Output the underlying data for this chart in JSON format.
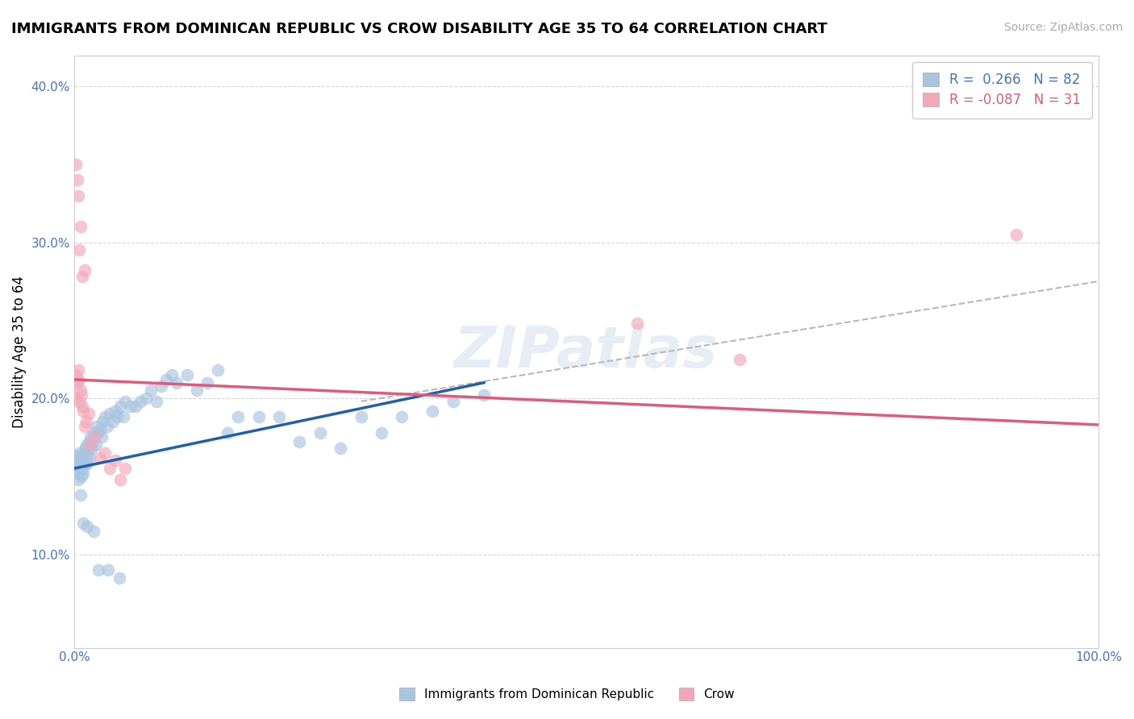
{
  "title": "IMMIGRANTS FROM DOMINICAN REPUBLIC VS CROW DISABILITY AGE 35 TO 64 CORRELATION CHART",
  "source_text": "Source: ZipAtlas.com",
  "ylabel": "Disability Age 35 to 64",
  "xlim": [
    0.0,
    1.0
  ],
  "ylim": [
    0.04,
    0.42
  ],
  "xticks": [
    0.0,
    0.1,
    0.2,
    0.3,
    0.4,
    0.5,
    0.6,
    0.7,
    0.8,
    0.9,
    1.0
  ],
  "xticklabels": [
    "0.0%",
    "",
    "",
    "",
    "",
    "",
    "",
    "",
    "",
    "",
    "100.0%"
  ],
  "yticks": [
    0.1,
    0.2,
    0.3,
    0.4
  ],
  "yticklabels": [
    "10.0%",
    "20.0%",
    "30.0%",
    "40.0%"
  ],
  "blue_R": 0.266,
  "blue_N": 82,
  "pink_R": -0.087,
  "pink_N": 31,
  "legend_label_blue": "Immigrants from Dominican Republic",
  "legend_label_pink": "Crow",
  "blue_color": "#a8c4e0",
  "pink_color": "#f4a7b9",
  "blue_line_color": "#2060a8",
  "pink_line_color": "#e05a7a",
  "trend_line_color": "#b8b8b8",
  "watermark": "ZIPatlas",
  "blue_x": [
    0.001,
    0.002,
    0.003,
    0.003,
    0.004,
    0.004,
    0.005,
    0.005,
    0.006,
    0.006,
    0.007,
    0.007,
    0.008,
    0.008,
    0.009,
    0.009,
    0.01,
    0.01,
    0.011,
    0.011,
    0.012,
    0.012,
    0.013,
    0.013,
    0.014,
    0.015,
    0.015,
    0.016,
    0.017,
    0.018,
    0.019,
    0.02,
    0.021,
    0.022,
    0.023,
    0.025,
    0.027,
    0.028,
    0.03,
    0.032,
    0.035,
    0.038,
    0.04,
    0.042,
    0.045,
    0.048,
    0.05,
    0.055,
    0.06,
    0.065,
    0.07,
    0.075,
    0.08,
    0.085,
    0.09,
    0.095,
    0.1,
    0.11,
    0.12,
    0.13,
    0.14,
    0.15,
    0.16,
    0.18,
    0.2,
    0.22,
    0.24,
    0.26,
    0.28,
    0.3,
    0.32,
    0.35,
    0.37,
    0.4,
    0.004,
    0.006,
    0.009,
    0.013,
    0.019,
    0.024,
    0.033,
    0.044
  ],
  "blue_y": [
    0.16,
    0.158,
    0.163,
    0.155,
    0.152,
    0.16,
    0.158,
    0.165,
    0.162,
    0.155,
    0.15,
    0.163,
    0.158,
    0.155,
    0.16,
    0.152,
    0.165,
    0.162,
    0.168,
    0.158,
    0.16,
    0.17,
    0.165,
    0.158,
    0.168,
    0.172,
    0.162,
    0.175,
    0.168,
    0.172,
    0.178,
    0.175,
    0.17,
    0.182,
    0.178,
    0.18,
    0.175,
    0.185,
    0.188,
    0.182,
    0.19,
    0.185,
    0.192,
    0.188,
    0.195,
    0.188,
    0.198,
    0.195,
    0.195,
    0.198,
    0.2,
    0.205,
    0.198,
    0.208,
    0.212,
    0.215,
    0.21,
    0.215,
    0.205,
    0.21,
    0.218,
    0.178,
    0.188,
    0.188,
    0.188,
    0.172,
    0.178,
    0.168,
    0.188,
    0.178,
    0.188,
    0.192,
    0.198,
    0.202,
    0.148,
    0.138,
    0.12,
    0.118,
    0.115,
    0.09,
    0.09,
    0.085
  ],
  "pink_x": [
    0.001,
    0.002,
    0.003,
    0.004,
    0.004,
    0.005,
    0.006,
    0.007,
    0.008,
    0.009,
    0.01,
    0.012,
    0.014,
    0.016,
    0.02,
    0.025,
    0.03,
    0.035,
    0.04,
    0.045,
    0.05,
    0.002,
    0.003,
    0.004,
    0.005,
    0.006,
    0.008,
    0.01,
    0.55,
    0.65,
    0.92
  ],
  "pink_y": [
    0.2,
    0.215,
    0.21,
    0.218,
    0.212,
    0.198,
    0.205,
    0.202,
    0.195,
    0.192,
    0.182,
    0.185,
    0.19,
    0.17,
    0.175,
    0.162,
    0.165,
    0.155,
    0.16,
    0.148,
    0.155,
    0.35,
    0.34,
    0.33,
    0.295,
    0.31,
    0.278,
    0.282,
    0.248,
    0.225,
    0.305
  ],
  "blue_trend_x0": 0.0,
  "blue_trend_y0": 0.155,
  "blue_trend_x1": 0.4,
  "blue_trend_y1": 0.21,
  "pink_trend_x0": 0.0,
  "pink_trend_y0": 0.212,
  "pink_trend_x1": 1.0,
  "pink_trend_y1": 0.183,
  "gray_trend_x0": 0.28,
  "gray_trend_y0": 0.198,
  "gray_trend_x1": 1.0,
  "gray_trend_y1": 0.275
}
